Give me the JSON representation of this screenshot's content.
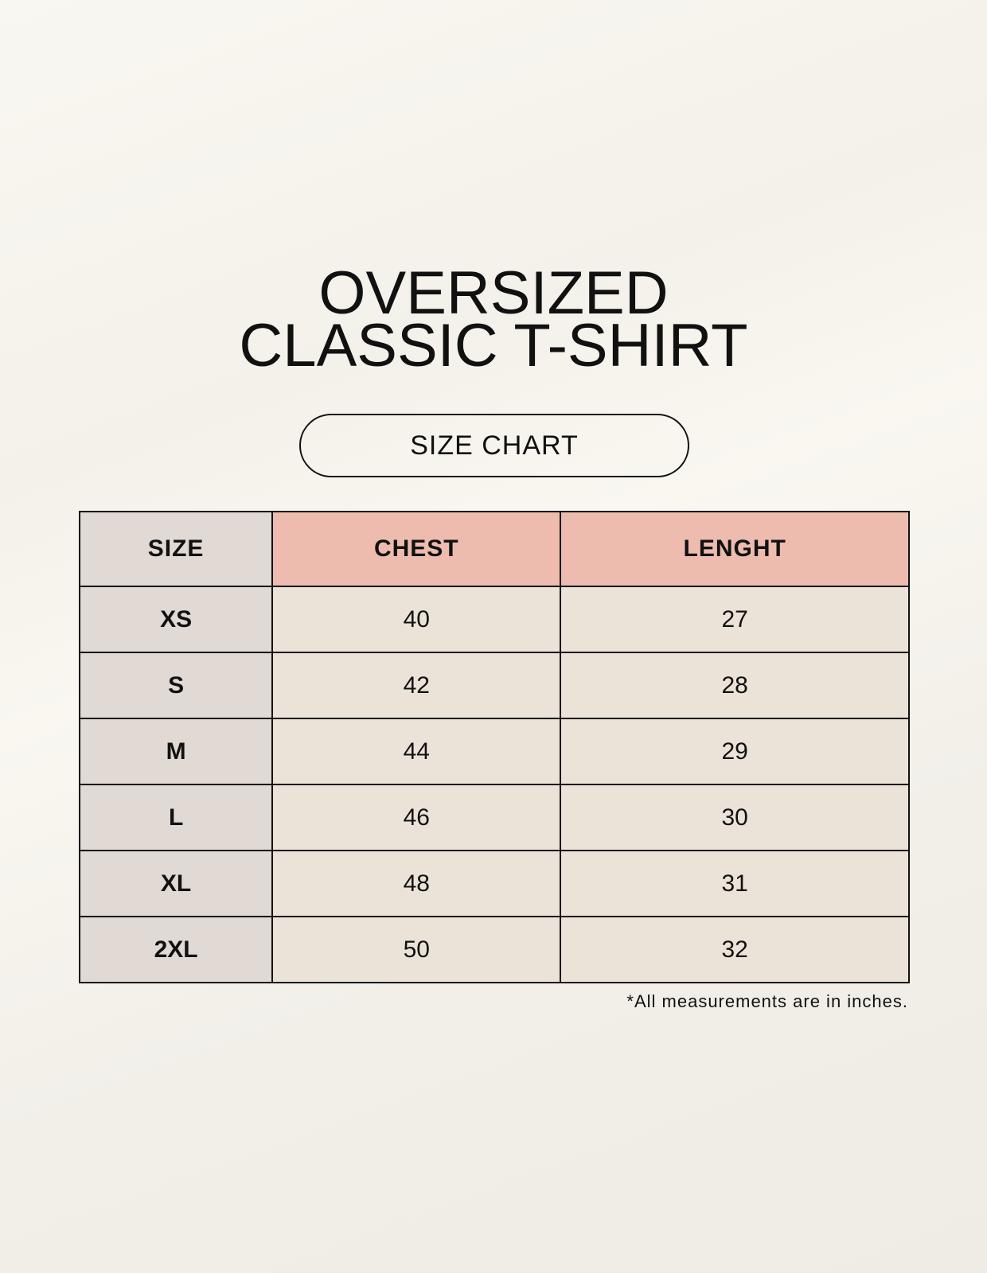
{
  "title_line1": "OVERSIZED",
  "title_line2": "CLASSIC T-SHIRT",
  "badge": "SIZE CHART",
  "table": {
    "headers": [
      "SIZE",
      "CHEST",
      "LENGHT"
    ],
    "rows": [
      [
        "XS",
        "40",
        "27"
      ],
      [
        "S",
        "42",
        "28"
      ],
      [
        "M",
        "44",
        "29"
      ],
      [
        "L",
        "46",
        "30"
      ],
      [
        "XL",
        "48",
        "31"
      ],
      [
        "2XL",
        "50",
        "32"
      ]
    ]
  },
  "footnote": "*All measurements are in inches.",
  "colors": {
    "header_accent": "#edbcaf",
    "size_column": "#e0d9d4",
    "cells": "#ebe3d8"
  }
}
